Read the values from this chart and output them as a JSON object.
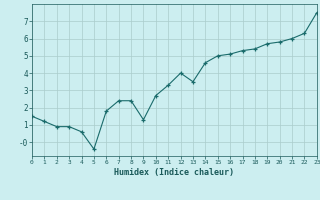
{
  "x": [
    0,
    1,
    2,
    3,
    4,
    5,
    6,
    7,
    8,
    9,
    10,
    11,
    12,
    13,
    14,
    15,
    16,
    17,
    18,
    19,
    20,
    21,
    22,
    23
  ],
  "y": [
    1.5,
    1.2,
    0.9,
    0.9,
    0.6,
    -0.4,
    1.8,
    2.4,
    2.4,
    1.3,
    2.7,
    3.3,
    4.0,
    3.5,
    4.6,
    5.0,
    5.1,
    5.3,
    5.4,
    5.7,
    5.8,
    6.0,
    6.3,
    7.5
  ],
  "xlabel": "Humidex (Indice chaleur)",
  "bg_color": "#cceef0",
  "grid_color": "#aacccc",
  "line_color": "#1a6b6b",
  "marker_color": "#1a6b6b",
  "ylim": [
    -0.8,
    8.0
  ],
  "xlim": [
    0,
    23
  ],
  "yticks": [
    0,
    1,
    2,
    3,
    4,
    5,
    6,
    7
  ],
  "ytick_labels": [
    "-0",
    "1",
    "2",
    "3",
    "4",
    "5",
    "6",
    "7"
  ],
  "xticks": [
    0,
    1,
    2,
    3,
    4,
    5,
    6,
    7,
    8,
    9,
    10,
    11,
    12,
    13,
    14,
    15,
    16,
    17,
    18,
    19,
    20,
    21,
    22,
    23
  ],
  "xtick_labels": [
    "0",
    "1",
    "2",
    "3",
    "4",
    "5",
    "6",
    "7",
    "8",
    "9",
    "10",
    "11",
    "12",
    "13",
    "14",
    "15",
    "16",
    "17",
    "18",
    "19",
    "20",
    "21",
    "22",
    "23"
  ]
}
